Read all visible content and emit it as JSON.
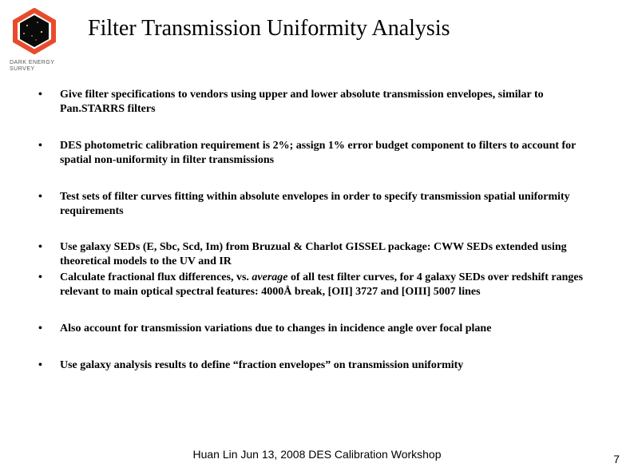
{
  "logo": {
    "label": "DARK ENERGY SURVEY",
    "hex_border": "#e84b2c",
    "hex_stroke_width": 6,
    "text_color": "#555555",
    "text_fontsize": 7,
    "image_bg": "#0a0a0a"
  },
  "title": "Filter Transmission Uniformity Analysis",
  "bullets": [
    {
      "text": "Give filter specifications to vendors using upper and lower absolute transmission envelopes, similar to Pan.STARRS filters",
      "gap_after": "gap"
    },
    {
      "text": "DES photometric calibration requirement is 2%;  assign 1% error budget component to filters to account for spatial non-uniformity in filter transmissions",
      "gap_after": "gap"
    },
    {
      "text": "Test sets of filter curves fitting within absolute envelopes in order to specify transmission spatial uniformity requirements",
      "gap_after": "gap"
    },
    {
      "text": "Use galaxy SEDs (E, Sbc, Scd, Im) from Bruzual & Charlot GISSEL package:  CWW SEDs extended using theoretical models to the UV and IR",
      "gap_after": "gap-small"
    },
    {
      "html": "Calculate fractional flux differences, vs. <span class=\"italic\">average</span> of all test filter curves, for 4 galaxy SEDs over redshift ranges relevant to main optical spectral features: 4000Å break, [OII] 3727 and [OIII] 5007 lines",
      "gap_after": "gap"
    },
    {
      "text": "Also account for transmission variations due to changes in incidence angle over focal plane",
      "gap_after": "gap"
    },
    {
      "text": "Use galaxy analysis results to define “fraction envelopes” on transmission uniformity",
      "gap_after": ""
    }
  ],
  "footer": "Huan Lin   Jun 13, 2008   DES Calibration Workshop",
  "page_number": "7"
}
